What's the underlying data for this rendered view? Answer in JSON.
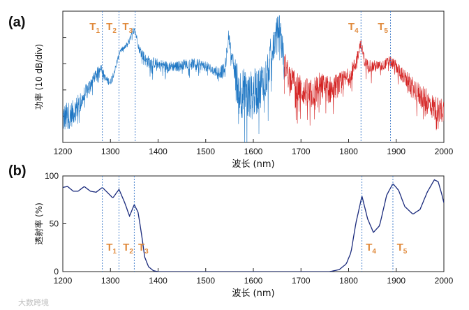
{
  "panel_a_label": "(a)",
  "panel_b_label": "(b)",
  "watermark": "大数跨境",
  "colors": {
    "blue": "#1f77c4",
    "red": "#d42222",
    "navy": "#1a2a7c",
    "marker": "#e08a3c",
    "guide": "#3a78c8"
  },
  "chart_data": [
    {
      "type": "line",
      "panel": "a",
      "xlabel": "波长 (nm)",
      "ylabel": "功率 (10 dB/div)",
      "xlim": [
        1200,
        2000
      ],
      "ylim": [
        0,
        5
      ],
      "xticks": [
        1200,
        1300,
        1400,
        1500,
        1600,
        1700,
        1800,
        1900,
        2000
      ],
      "yticks": [],
      "grid": false,
      "series": [
        {
          "color": "#1f77c4",
          "x": [
            1200,
            1220,
            1240,
            1260,
            1270,
            1280,
            1290,
            1300,
            1310,
            1320,
            1330,
            1340,
            1350,
            1360,
            1375,
            1400,
            1420,
            1440,
            1460,
            1480,
            1500,
            1520,
            1540,
            1548,
            1556,
            1570,
            1590,
            1610,
            1625,
            1640,
            1650,
            1655,
            1660,
            1665
          ],
          "y": [
            0.9,
            1.1,
            1.6,
            2.3,
            2.6,
            2.9,
            2.4,
            2.3,
            2.8,
            3.5,
            3.6,
            3.9,
            4.4,
            3.6,
            3.1,
            3.0,
            2.9,
            2.9,
            3.0,
            3.0,
            2.9,
            2.7,
            2.7,
            4.1,
            3.1,
            2.0,
            1.7,
            2.0,
            2.5,
            3.5,
            4.2,
            4.5,
            3.8,
            3.0
          ],
          "noise": [
            0.6,
            0.5,
            0.4,
            0.25,
            0.2,
            0.15,
            0.15,
            0.15,
            0.12,
            0.1,
            0.1,
            0.1,
            0.1,
            0.15,
            0.25,
            0.2,
            0.2,
            0.2,
            0.2,
            0.2,
            0.2,
            0.2,
            0.3,
            0.2,
            0.3,
            1.0,
            1.0,
            0.9,
            0.8,
            0.7,
            0.6,
            0.5,
            0.6,
            0.5
          ]
        },
        {
          "color": "#d42222",
          "x": [
            1665,
            1680,
            1700,
            1720,
            1740,
            1760,
            1780,
            1800,
            1815,
            1825,
            1835,
            1850,
            1870,
            1885,
            1900,
            1920,
            1950,
            1980,
            2000
          ],
          "y": [
            3.0,
            2.4,
            2.0,
            1.8,
            2.2,
            2.0,
            2.2,
            2.5,
            3.0,
            3.8,
            3.0,
            2.9,
            2.9,
            3.1,
            2.9,
            2.4,
            1.8,
            1.3,
            1.2
          ],
          "noise": [
            0.5,
            0.5,
            0.55,
            0.6,
            0.5,
            0.55,
            0.45,
            0.35,
            0.3,
            0.2,
            0.25,
            0.25,
            0.2,
            0.2,
            0.25,
            0.35,
            0.45,
            0.5,
            0.5
          ]
        }
      ],
      "markers": [
        {
          "main": "T",
          "sub": "1",
          "x": 1283
        },
        {
          "main": "T",
          "sub": "2",
          "x": 1318
        },
        {
          "main": "T",
          "sub": "3",
          "x": 1352
        },
        {
          "main": "T",
          "sub": "4",
          "x": 1826
        },
        {
          "main": "T",
          "sub": "5",
          "x": 1888
        }
      ]
    },
    {
      "type": "line",
      "panel": "b",
      "xlabel": "波长 (nm)",
      "ylabel": "透射率 (%)",
      "xlim": [
        1200,
        2000
      ],
      "ylim": [
        0,
        100
      ],
      "xticks": [
        1200,
        1300,
        1400,
        1500,
        1600,
        1700,
        1800,
        1900,
        2000
      ],
      "yticks": [
        0,
        50,
        100
      ],
      "grid": false,
      "series": [
        {
          "color": "#1a2a7c",
          "x": [
            1200,
            1210,
            1222,
            1232,
            1245,
            1258,
            1270,
            1283,
            1295,
            1305,
            1318,
            1330,
            1340,
            1350,
            1358,
            1365,
            1372,
            1380,
            1390,
            1400,
            1500,
            1600,
            1700,
            1760,
            1780,
            1795,
            1805,
            1815,
            1828,
            1840,
            1852,
            1865,
            1880,
            1893,
            1905,
            1918,
            1935,
            1950,
            1965,
            1980,
            1988,
            1995,
            2000
          ],
          "y": [
            88,
            89,
            84,
            84,
            89,
            84,
            83,
            88,
            82,
            77,
            86,
            72,
            58,
            70,
            62,
            40,
            15,
            5,
            1,
            0,
            0,
            0,
            0,
            0,
            2,
            8,
            20,
            50,
            79,
            55,
            41,
            48,
            80,
            92,
            85,
            68,
            60,
            65,
            83,
            96,
            94,
            82,
            72
          ]
        }
      ],
      "markers": [
        {
          "main": "T",
          "sub": "1",
          "x": 1283
        },
        {
          "main": "T",
          "sub": "2",
          "x": 1318
        },
        {
          "main": "T",
          "sub": "3",
          "x": 1350
        },
        {
          "main": "T",
          "sub": "4",
          "x": 1828
        },
        {
          "main": "T",
          "sub": "5",
          "x": 1893
        }
      ]
    }
  ]
}
